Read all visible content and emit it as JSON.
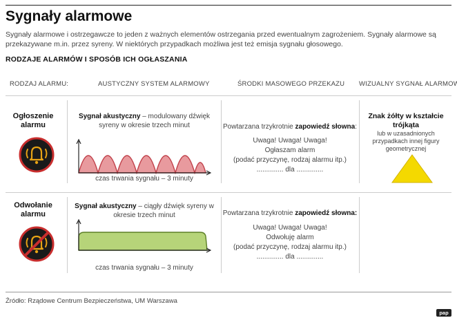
{
  "header": {
    "title": "Sygnały alarmowe",
    "intro": "Sygnały alarmowe i ostrzegawcze to jeden z ważnych elementów ostrzegania przed ewentualnym zagrożeniem. Sygnały alarmowe są przekazywane m.in. przez syreny. W niektórych przypadkach możliwa jest też emisja sygnału głosowego.",
    "subhead": "RODZAJE ALARMÓW I SPOSÓB ICH OGŁASZANIA"
  },
  "columns": {
    "type": "RODZAJ ALARMU:",
    "acoustic": "AUSTYCZNY SYSTEM ALARMOWY",
    "media": "ŚRODKI MASOWEGO PRZEKAZU",
    "visual": "WIZUALNY SYGNAŁ ALARMOWY"
  },
  "rows": [
    {
      "label": "Ogłoszenie alarmu",
      "signal_bold": "Sygnał akustyczny",
      "signal_desc": "– modulowany dźwięk syreny w okresie trzech minut",
      "duration": "czas trwania sygnału – 3 minuty",
      "media_intro": "Powtarzana trzykrotnie",
      "media_bold": "zapowiedź słowna",
      "media_colon": ":",
      "lines": [
        "Uwaga! Uwaga! Uwaga!",
        "Ogłaszam alarm",
        "(podać przyczynę, rodzaj alarmu itp.)",
        ".............. dla .............."
      ]
    },
    {
      "label": "Odwołanie alarmu",
      "signal_bold": "Sygnał akustyczny",
      "signal_desc": "– ciągły dźwięk syreny w okresie trzech minut",
      "duration": "czas trwania sygnału – 3 minuty",
      "media_intro": "Powtarzana trzykrotnie",
      "media_bold": "zapowiedź słowna:",
      "media_colon": "",
      "lines": [
        "Uwaga! Uwaga! Uwaga!",
        "Odwołuję alarm",
        "(podać przyczynę, rodzaj alarmu itp.)",
        ".............. dla .............."
      ]
    }
  ],
  "visual": {
    "title": "Znak żółty w kształcie trójkąta",
    "note": "lub w uzasadnionych przypadkach innej figury geometrycznej",
    "color": "#f4d900"
  },
  "colors": {
    "wave_fill": "#e89a9e",
    "wave_stroke": "#c0404a",
    "plateau_fill": "#b6d479",
    "plateau_stroke": "#5c7f26",
    "icon_bg": "#1a1a1a",
    "icon_ring": "#c92e2e",
    "icon_accent": "#e8a315"
  },
  "footer": {
    "source": "Źródło: Rządowe Centrum Bezpieczeństwa, UM Warszawa",
    "logo": "pap"
  }
}
